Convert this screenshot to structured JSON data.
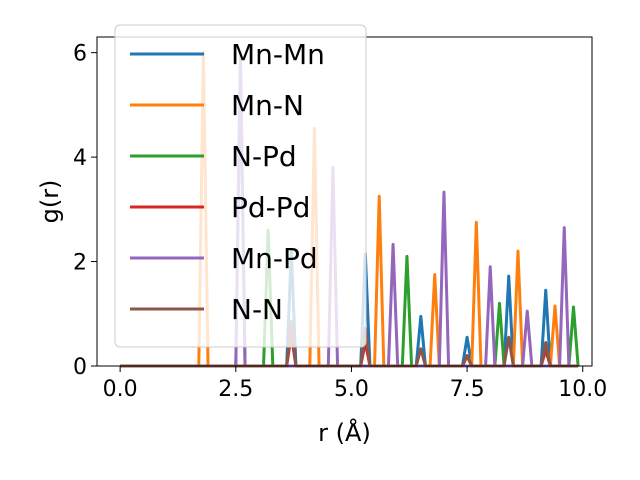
{
  "chart_data": {
    "type": "line",
    "xlabel": "r (Å)",
    "ylabel": "g(r)",
    "xlim": [
      -0.5,
      10.2
    ],
    "ylim": [
      0,
      6.3
    ],
    "xticks": [
      0.0,
      2.5,
      5.0,
      7.5,
      10.0
    ],
    "xtick_labels": [
      "0.0",
      "2.5",
      "5.0",
      "7.5",
      "10.0"
    ],
    "yticks": [
      0,
      2,
      4,
      6
    ],
    "ytick_labels": [
      "0",
      "2",
      "4",
      "6"
    ],
    "grid": false,
    "legend_position": "top-left",
    "x_range": [
      0.0,
      9.9
    ],
    "series": [
      {
        "name": "Mn-Mn",
        "color": "#1f77b4",
        "peaks": [
          [
            2.6,
            5.9
          ],
          [
            3.7,
            2.2
          ],
          [
            5.3,
            2.15
          ],
          [
            6.5,
            0.95
          ],
          [
            7.5,
            0.55
          ],
          [
            8.4,
            1.72
          ],
          [
            9.2,
            1.45
          ]
        ]
      },
      {
        "name": "Mn-N",
        "color": "#ff7f0e",
        "peaks": [
          [
            1.8,
            6.0
          ],
          [
            4.2,
            4.55
          ],
          [
            5.6,
            3.25
          ],
          [
            6.8,
            1.75
          ],
          [
            7.7,
            2.75
          ],
          [
            8.6,
            2.2
          ],
          [
            9.4,
            1.15
          ]
        ]
      },
      {
        "name": "N-Pd",
        "color": "#2ca02c",
        "peaks": [
          [
            3.2,
            2.6
          ],
          [
            6.2,
            2.1
          ],
          [
            8.2,
            1.2
          ],
          [
            9.8,
            1.13
          ]
        ]
      },
      {
        "name": "Pd-Pd",
        "color": "#d62728",
        "peaks": [
          [
            3.7,
            0.6
          ],
          [
            5.3,
            0.45
          ],
          [
            7.5,
            0.2
          ],
          [
            9.2,
            0.3
          ]
        ]
      },
      {
        "name": "Mn-Pd",
        "color": "#9467bd",
        "peaks": [
          [
            2.6,
            6.0
          ],
          [
            4.6,
            3.8
          ],
          [
            5.9,
            2.33
          ],
          [
            7.0,
            3.33
          ],
          [
            8.0,
            1.9
          ],
          [
            8.8,
            1.05
          ],
          [
            9.6,
            2.65
          ]
        ]
      },
      {
        "name": "N-N",
        "color": "#8c564b",
        "peaks": [
          [
            3.7,
            0.85
          ],
          [
            5.3,
            0.73
          ],
          [
            6.5,
            0.33
          ],
          [
            7.5,
            0.19
          ],
          [
            8.4,
            0.55
          ],
          [
            9.2,
            0.45
          ]
        ]
      }
    ]
  }
}
